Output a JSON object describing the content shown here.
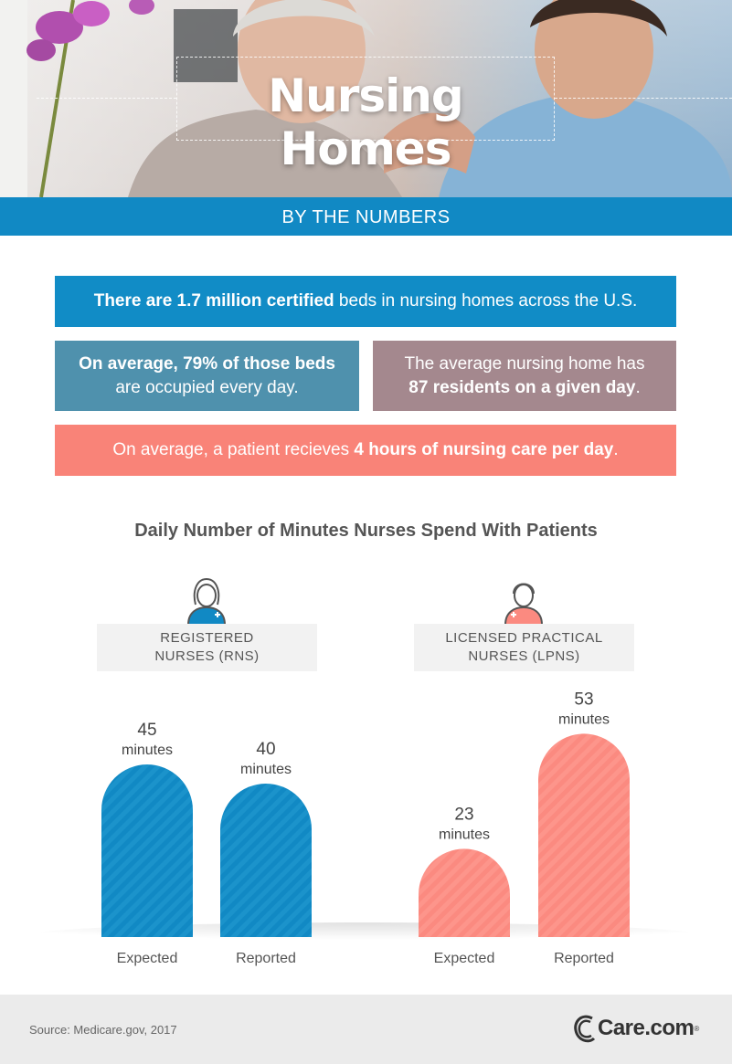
{
  "hero": {
    "title": "Nursing Homes",
    "subtitle": "BY THE NUMBERS"
  },
  "facts": [
    {
      "bold": "There are 1.7 million certified",
      "rest": " beds in nursing homes across the U.S."
    },
    {
      "bold": "On average, 79% of those beds",
      "rest": "are occupied every day."
    },
    {
      "lead": "The average nursing home has",
      "bold": "87 residents on a given day",
      "tail": "."
    },
    {
      "lead": "On average, a patient recieves ",
      "bold": "4 hours of nursing care per day",
      "tail": "."
    }
  ],
  "colors": {
    "rn_bar": "#1189c4",
    "lpn_bar": "#fb8a80",
    "band": "#1189c4"
  },
  "chart_data": {
    "type": "bar",
    "title": "Daily Number of Minutes Nurses Spend With Patients",
    "groups": [
      {
        "name_line1": "REGISTERED",
        "name_line2": "NURSES (RNS)",
        "icon": "female-nurse-icon",
        "categories": [
          "Expected",
          "Reported"
        ],
        "values": [
          45,
          40
        ],
        "unit": "minutes"
      },
      {
        "name_line1": "LICENSED PRACTICAL",
        "name_line2": "NURSES (LPNS)",
        "icon": "male-nurse-icon",
        "categories": [
          "Expected",
          "Reported"
        ],
        "values": [
          23,
          53
        ],
        "unit": "minutes"
      }
    ]
  },
  "footer": {
    "source": "Source: Medicare.gov, 2017",
    "logo": "Care.com"
  }
}
